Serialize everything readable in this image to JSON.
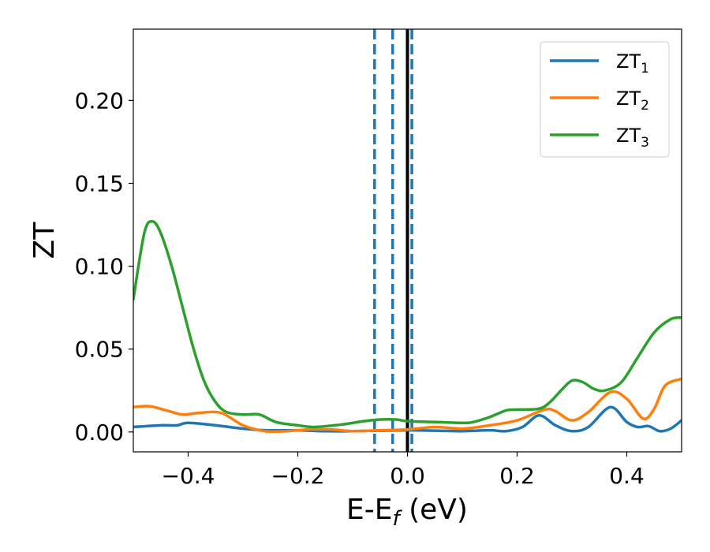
{
  "chart_data": {
    "type": "line",
    "xlabel": "E-E_f (eV)",
    "ylabel": "ZT",
    "xlim": [
      -0.5,
      0.5
    ],
    "ylim": [
      -0.012,
      0.243
    ],
    "xticks": [
      -0.4,
      -0.2,
      0.0,
      0.2,
      0.4
    ],
    "xtick_labels": [
      "−0.4",
      "−0.2",
      "0.0",
      "0.2",
      "0.4"
    ],
    "yticks": [
      0.0,
      0.05,
      0.1,
      0.15,
      0.2
    ],
    "ytick_labels": [
      "0.00",
      "0.05",
      "0.10",
      "0.15",
      "0.20"
    ],
    "grid": false,
    "legend_position": "top-right",
    "series": [
      {
        "name": "ZT1",
        "label_base": "ZT",
        "label_sub": "1",
        "color": "#1f77b4",
        "x": [
          -0.5,
          -0.45,
          -0.42,
          -0.4,
          -0.35,
          -0.3,
          -0.26,
          -0.2,
          -0.15,
          -0.1,
          -0.05,
          0.0,
          0.05,
          0.1,
          0.15,
          0.18,
          0.21,
          0.24,
          0.27,
          0.3,
          0.33,
          0.37,
          0.4,
          0.42,
          0.44,
          0.46,
          0.48,
          0.5
        ],
        "y": [
          0.003,
          0.004,
          0.004,
          0.0055,
          0.004,
          0.002,
          0.001,
          0.001,
          0.0005,
          0.0005,
          0.0008,
          0.001,
          0.0008,
          0.0005,
          0.001,
          0.0005,
          0.003,
          0.01,
          0.004,
          0.0005,
          0.003,
          0.015,
          0.006,
          0.003,
          0.0035,
          0.0005,
          0.002,
          0.007
        ]
      },
      {
        "name": "ZT2",
        "label_base": "ZT",
        "label_sub": "2",
        "color": "#ff7f0e",
        "x": [
          -0.5,
          -0.47,
          -0.44,
          -0.41,
          -0.38,
          -0.34,
          -0.3,
          -0.26,
          -0.22,
          -0.18,
          -0.14,
          -0.1,
          -0.05,
          0.0,
          0.05,
          0.1,
          0.15,
          0.2,
          0.25,
          0.27,
          0.3,
          0.33,
          0.37,
          0.4,
          0.43,
          0.45,
          0.47,
          0.5
        ],
        "y": [
          0.015,
          0.0155,
          0.013,
          0.0105,
          0.0115,
          0.0115,
          0.004,
          0.0005,
          0.0005,
          0.0015,
          0.0015,
          0.0005,
          0.001,
          0.0015,
          0.003,
          0.002,
          0.004,
          0.007,
          0.0135,
          0.0125,
          0.007,
          0.012,
          0.024,
          0.02,
          0.008,
          0.014,
          0.028,
          0.032
        ]
      },
      {
        "name": "ZT3",
        "label_base": "ZT",
        "label_sub": "3",
        "color": "#2ca02c",
        "x": [
          -0.5,
          -0.48,
          -0.465,
          -0.45,
          -0.43,
          -0.41,
          -0.39,
          -0.37,
          -0.35,
          -0.33,
          -0.3,
          -0.27,
          -0.24,
          -0.2,
          -0.17,
          -0.12,
          -0.08,
          -0.05,
          -0.02,
          0.0,
          0.05,
          0.1,
          0.12,
          0.15,
          0.18,
          0.2,
          0.24,
          0.26,
          0.28,
          0.3,
          0.32,
          0.34,
          0.36,
          0.39,
          0.42,
          0.45,
          0.48,
          0.5
        ],
        "y": [
          0.08,
          0.12,
          0.127,
          0.12,
          0.1,
          0.075,
          0.05,
          0.03,
          0.018,
          0.012,
          0.0105,
          0.0105,
          0.006,
          0.004,
          0.003,
          0.0045,
          0.0065,
          0.0075,
          0.0075,
          0.0065,
          0.006,
          0.0055,
          0.006,
          0.009,
          0.013,
          0.0135,
          0.014,
          0.018,
          0.025,
          0.031,
          0.03,
          0.026,
          0.025,
          0.03,
          0.045,
          0.06,
          0.068,
          0.069
        ]
      }
    ],
    "vertical_lines": [
      {
        "x": -0.06,
        "style": "dashed",
        "color": "#1f77b4"
      },
      {
        "x": -0.027,
        "style": "dashed",
        "color": "#1f77b4"
      },
      {
        "x": 0.008,
        "style": "dashed",
        "color": "#1f77b4"
      },
      {
        "x": 0.0,
        "style": "solid",
        "color": "#000000"
      }
    ]
  }
}
